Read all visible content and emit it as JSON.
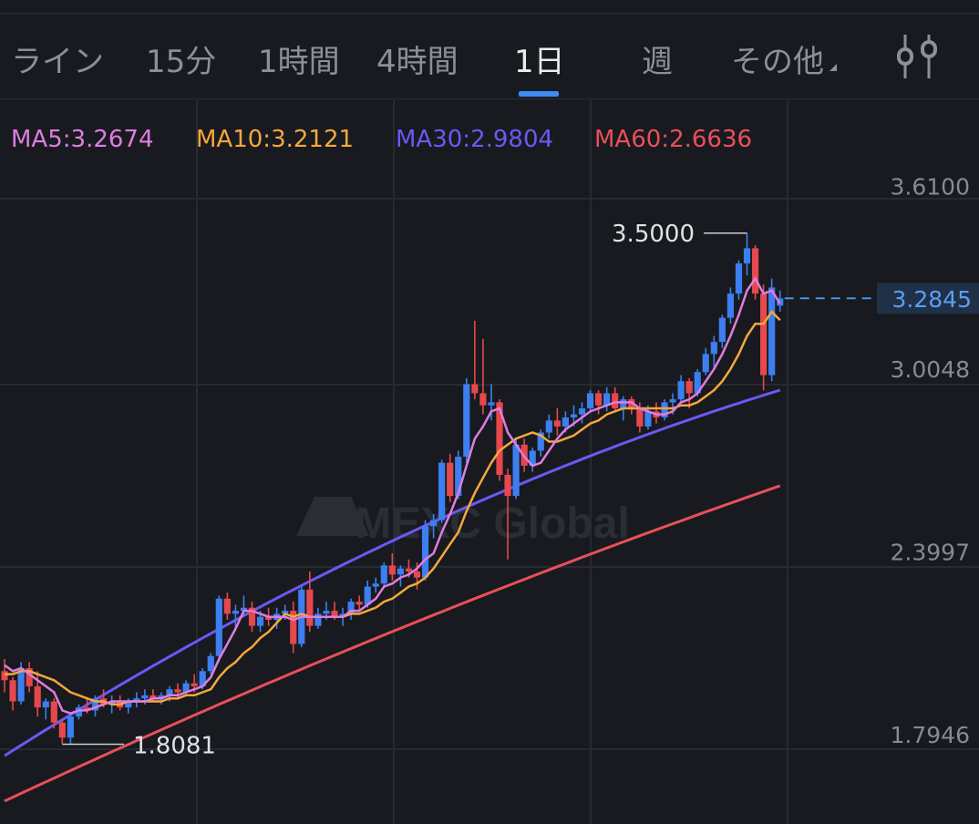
{
  "tabs": [
    {
      "label": "ライン"
    },
    {
      "label": "15分"
    },
    {
      "label": "1時間"
    },
    {
      "label": "4時間"
    },
    {
      "label": "1日",
      "active": true
    },
    {
      "label": "週"
    },
    {
      "label": "その他"
    }
  ],
  "settings_icon": "candlestick-settings-icon",
  "legend": [
    {
      "text": "MA5:3.2674",
      "color": "#e07de0"
    },
    {
      "text": "MA10:3.2121",
      "color": "#f5a83d"
    },
    {
      "text": "MA30:2.9804",
      "color": "#6a59f5"
    },
    {
      "text": "MA60:2.6636",
      "color": "#e8505b"
    }
  ],
  "watermark": "MEXC Global",
  "chart_data": {
    "type": "candlestick",
    "y_ticks": [
      "3.6100",
      "3.0048",
      "2.3997",
      "1.7946"
    ],
    "ylim": [
      1.74,
      3.84
    ],
    "current_price": "3.2845",
    "high_label": "3.5000",
    "low_label": "1.8081",
    "colors": {
      "up": "#3d7ef0",
      "down": "#e5484d",
      "current": "#4a90f0"
    },
    "grid": true,
    "candles": [
      [
        2.05,
        2.09,
        1.98,
        2.02
      ],
      [
        2.02,
        2.03,
        1.92,
        1.95
      ],
      [
        1.95,
        2.08,
        1.94,
        2.06
      ],
      [
        2.06,
        2.08,
        1.98,
        2.0
      ],
      [
        2.0,
        2.05,
        1.9,
        1.93
      ],
      [
        1.93,
        1.96,
        1.89,
        1.95
      ],
      [
        1.95,
        1.96,
        1.86,
        1.88
      ],
      [
        1.88,
        1.89,
        1.81,
        1.83
      ],
      [
        1.83,
        1.91,
        1.81,
        1.9
      ],
      [
        1.9,
        1.94,
        1.89,
        1.93
      ],
      [
        1.93,
        1.96,
        1.91,
        1.92
      ],
      [
        1.92,
        1.97,
        1.9,
        1.96
      ],
      [
        1.96,
        1.99,
        1.93,
        1.94
      ],
      [
        1.94,
        1.97,
        1.91,
        1.95
      ],
      [
        1.95,
        1.97,
        1.92,
        1.93
      ],
      [
        1.93,
        1.96,
        1.91,
        1.95
      ],
      [
        1.95,
        1.98,
        1.93,
        1.96
      ],
      [
        1.96,
        1.99,
        1.94,
        1.97
      ],
      [
        1.97,
        1.99,
        1.95,
        1.96
      ],
      [
        1.96,
        1.98,
        1.94,
        1.97
      ],
      [
        1.97,
        2.0,
        1.95,
        1.99
      ],
      [
        1.99,
        2.01,
        1.96,
        1.98
      ],
      [
        1.98,
        2.02,
        1.97,
        2.01
      ],
      [
        2.01,
        2.04,
        1.98,
        2.0
      ],
      [
        2.0,
        2.06,
        1.99,
        2.05
      ],
      [
        2.05,
        2.11,
        2.04,
        2.1
      ],
      [
        2.1,
        2.3,
        2.08,
        2.29
      ],
      [
        2.29,
        2.31,
        2.22,
        2.24
      ],
      [
        2.24,
        2.27,
        2.19,
        2.25
      ],
      [
        2.25,
        2.3,
        2.23,
        2.26
      ],
      [
        2.26,
        2.28,
        2.18,
        2.2
      ],
      [
        2.2,
        2.25,
        2.18,
        2.23
      ],
      [
        2.23,
        2.26,
        2.2,
        2.22
      ],
      [
        2.22,
        2.26,
        2.19,
        2.24
      ],
      [
        2.24,
        2.27,
        2.22,
        2.25
      ],
      [
        2.25,
        2.28,
        2.11,
        2.14
      ],
      [
        2.14,
        2.33,
        2.13,
        2.32
      ],
      [
        2.32,
        2.38,
        2.18,
        2.2
      ],
      [
        2.2,
        2.26,
        2.19,
        2.24
      ],
      [
        2.24,
        2.28,
        2.22,
        2.25
      ],
      [
        2.25,
        2.28,
        2.22,
        2.23
      ],
      [
        2.23,
        2.26,
        2.2,
        2.24
      ],
      [
        2.24,
        2.29,
        2.22,
        2.28
      ],
      [
        2.28,
        2.3,
        2.25,
        2.27
      ],
      [
        2.27,
        2.35,
        2.26,
        2.33
      ],
      [
        2.33,
        2.36,
        2.31,
        2.34
      ],
      [
        2.34,
        2.41,
        2.33,
        2.4
      ],
      [
        2.4,
        2.44,
        2.35,
        2.37
      ],
      [
        2.37,
        2.4,
        2.33,
        2.39
      ],
      [
        2.39,
        2.42,
        2.36,
        2.38
      ],
      [
        2.38,
        2.41,
        2.32,
        2.36
      ],
      [
        2.36,
        2.55,
        2.35,
        2.53
      ],
      [
        2.53,
        2.57,
        2.49,
        2.55
      ],
      [
        2.55,
        2.75,
        2.54,
        2.74
      ],
      [
        2.74,
        2.77,
        2.61,
        2.63
      ],
      [
        2.63,
        2.78,
        2.62,
        2.76
      ],
      [
        2.76,
        3.02,
        2.74,
        3.0
      ],
      [
        3.0,
        3.21,
        2.95,
        2.97
      ],
      [
        2.97,
        3.15,
        2.9,
        2.93
      ],
      [
        2.93,
        3.0,
        2.88,
        2.94
      ],
      [
        2.94,
        2.95,
        2.68,
        2.7
      ],
      [
        2.7,
        2.72,
        2.42,
        2.63
      ],
      [
        2.63,
        2.82,
        2.62,
        2.8
      ],
      [
        2.8,
        2.82,
        2.71,
        2.73
      ],
      [
        2.73,
        2.79,
        2.71,
        2.78
      ],
      [
        2.78,
        2.85,
        2.76,
        2.84
      ],
      [
        2.84,
        2.9,
        2.82,
        2.88
      ],
      [
        2.88,
        2.92,
        2.83,
        2.86
      ],
      [
        2.86,
        2.91,
        2.84,
        2.89
      ],
      [
        2.89,
        2.93,
        2.86,
        2.9
      ],
      [
        2.9,
        2.94,
        2.87,
        2.92
      ],
      [
        2.92,
        2.98,
        2.91,
        2.97
      ],
      [
        2.97,
        2.98,
        2.9,
        2.93
      ],
      [
        2.93,
        2.99,
        2.91,
        2.97
      ],
      [
        2.97,
        2.99,
        2.91,
        2.92
      ],
      [
        2.92,
        2.96,
        2.88,
        2.95
      ],
      [
        2.95,
        2.96,
        2.9,
        2.92
      ],
      [
        2.92,
        2.94,
        2.84,
        2.86
      ],
      [
        2.86,
        2.93,
        2.85,
        2.91
      ],
      [
        2.91,
        2.94,
        2.87,
        2.89
      ],
      [
        2.89,
        2.95,
        2.88,
        2.94
      ],
      [
        2.94,
        2.97,
        2.9,
        2.95
      ],
      [
        2.95,
        3.03,
        2.94,
        3.01
      ],
      [
        3.01,
        3.02,
        2.92,
        2.97
      ],
      [
        2.97,
        3.05,
        2.96,
        3.04
      ],
      [
        3.04,
        3.12,
        3.03,
        3.1
      ],
      [
        3.1,
        3.16,
        3.05,
        3.14
      ],
      [
        3.14,
        3.23,
        3.12,
        3.22
      ],
      [
        3.22,
        3.32,
        3.2,
        3.3
      ],
      [
        3.3,
        3.41,
        3.28,
        3.4
      ],
      [
        3.4,
        3.5,
        3.36,
        3.45
      ],
      [
        3.45,
        3.46,
        3.28,
        3.3
      ],
      [
        3.3,
        3.33,
        2.98,
        3.03
      ],
      [
        3.03,
        3.35,
        3.01,
        3.32
      ],
      [
        3.26,
        3.31,
        3.24,
        3.2845
      ]
    ],
    "ma5": [
      2.07,
      2.05,
      2.06,
      2.04,
      2.02,
      2.0,
      1.98,
      1.92,
      1.91,
      1.92,
      1.92,
      1.93,
      1.94,
      1.95,
      1.95,
      1.95,
      1.95,
      1.95,
      1.96,
      1.96,
      1.97,
      1.97,
      1.98,
      1.99,
      2.0,
      2.03,
      2.09,
      2.14,
      2.19,
      2.25,
      2.25,
      2.24,
      2.23,
      2.23,
      2.23,
      2.22,
      2.23,
      2.23,
      2.23,
      2.23,
      2.23,
      2.23,
      2.25,
      2.25,
      2.27,
      2.29,
      2.33,
      2.34,
      2.36,
      2.37,
      2.39,
      2.42,
      2.44,
      2.51,
      2.57,
      2.64,
      2.73,
      2.82,
      2.86,
      2.91,
      2.92,
      2.84,
      2.8,
      2.76,
      2.73,
      2.74,
      2.78,
      2.82,
      2.85,
      2.87,
      2.89,
      2.91,
      2.92,
      2.93,
      2.94,
      2.94,
      2.94,
      2.92,
      2.91,
      2.9,
      2.9,
      2.91,
      2.94,
      2.95,
      2.97,
      3.01,
      3.05,
      3.1,
      3.16,
      3.23,
      3.31,
      3.35,
      3.3,
      3.31,
      3.2674
    ],
    "ma10": [
      2.04,
      2.04,
      2.05,
      2.05,
      2.04,
      2.03,
      2.02,
      2.0,
      1.98,
      1.97,
      1.96,
      1.95,
      1.95,
      1.94,
      1.94,
      1.95,
      1.95,
      1.95,
      1.95,
      1.95,
      1.96,
      1.96,
      1.97,
      1.97,
      1.98,
      1.99,
      2.03,
      2.06,
      2.08,
      2.11,
      2.13,
      2.16,
      2.18,
      2.21,
      2.24,
      2.23,
      2.24,
      2.23,
      2.23,
      2.23,
      2.23,
      2.23,
      2.24,
      2.24,
      2.25,
      2.26,
      2.28,
      2.29,
      2.31,
      2.33,
      2.34,
      2.36,
      2.39,
      2.43,
      2.47,
      2.51,
      2.58,
      2.64,
      2.69,
      2.74,
      2.78,
      2.8,
      2.82,
      2.83,
      2.84,
      2.83,
      2.81,
      2.81,
      2.82,
      2.83,
      2.85,
      2.87,
      2.88,
      2.9,
      2.91,
      2.92,
      2.92,
      2.92,
      2.92,
      2.92,
      2.92,
      2.92,
      2.93,
      2.93,
      2.94,
      2.96,
      2.98,
      3.01,
      3.05,
      3.1,
      3.16,
      3.2,
      3.2,
      3.24,
      3.2121
    ],
    "ma30_start": 1.77,
    "ma30_end": 2.9804,
    "ma60_start": 1.62,
    "ma60_end": 2.6636
  }
}
